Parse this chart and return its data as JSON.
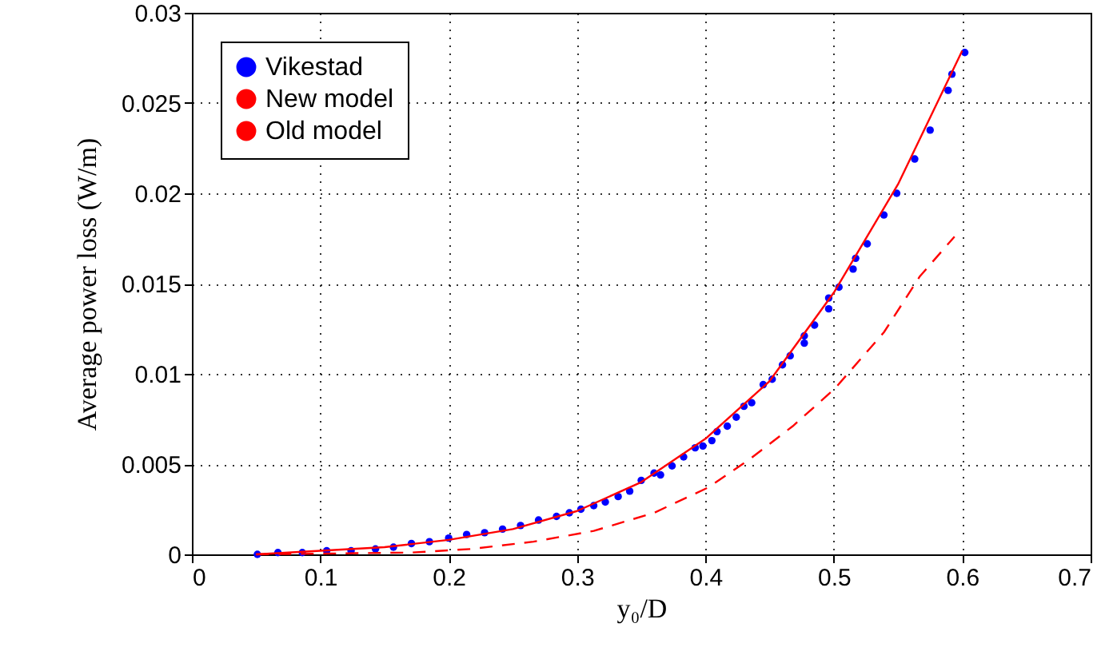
{
  "chart_data": {
    "type": "scatter",
    "xlabel": "y₀/D",
    "ylabel": "Average power loss (W/m)",
    "xlim": [
      0,
      0.7
    ],
    "ylim": [
      0,
      0.03
    ],
    "xticks": [
      0,
      0.1,
      0.2,
      0.3,
      0.4,
      0.5,
      0.6,
      0.7
    ],
    "yticks": [
      0,
      0.005,
      0.01,
      0.015,
      0.02,
      0.025,
      0.03
    ],
    "grid": true,
    "legend": "top left",
    "series": [
      {
        "name": "Vikestad",
        "marker": "circle",
        "color": "#0000ff",
        "x": [
          0.602,
          0.592,
          0.589,
          0.575,
          0.563,
          0.549,
          0.539,
          0.526,
          0.517,
          0.515,
          0.504,
          0.496,
          0.496,
          0.485,
          0.477,
          0.477,
          0.466,
          0.46,
          0.452,
          0.445,
          0.436,
          0.43,
          0.424,
          0.417,
          0.409,
          0.405,
          0.398,
          0.392,
          0.383,
          0.374,
          0.365,
          0.36,
          0.35,
          0.341,
          0.332,
          0.322,
          0.313,
          0.303,
          0.294,
          0.284,
          0.27,
          0.256,
          0.242,
          0.228,
          0.214,
          0.2,
          0.185,
          0.171,
          0.157,
          0.143,
          0.124,
          0.105,
          0.086,
          0.067,
          0.051
        ],
        "values": [
          0.0278,
          0.0266,
          0.0257,
          0.0235,
          0.0219,
          0.02,
          0.0188,
          0.0172,
          0.0164,
          0.0158,
          0.0148,
          0.0142,
          0.0136,
          0.0127,
          0.0121,
          0.0117,
          0.011,
          0.0105,
          0.0097,
          0.0094,
          0.0084,
          0.0082,
          0.0076,
          0.0071,
          0.0068,
          0.0063,
          0.006,
          0.0059,
          0.0054,
          0.0049,
          0.0044,
          0.0045,
          0.0041,
          0.0035,
          0.0032,
          0.0029,
          0.0027,
          0.0025,
          0.0023,
          0.0021,
          0.0019,
          0.0016,
          0.0014,
          0.0012,
          0.0011,
          0.0009,
          0.0007,
          0.0006,
          0.0004,
          0.0003,
          0.0002,
          0.0002,
          0.0001,
          0.0001,
          0
        ]
      },
      {
        "name": "New model",
        "type": "line",
        "line_style": "solid",
        "color": "#ff0000",
        "x": [
          0.05,
          0.1,
          0.15,
          0.2,
          0.25,
          0.3,
          0.35,
          0.4,
          0.45,
          0.5,
          0.55,
          0.6
        ],
        "values": [
          0,
          0.0002,
          0.0004,
          0.0008,
          0.0014,
          0.0024,
          0.004,
          0.0064,
          0.0096,
          0.0145,
          0.0205,
          0.0279
        ]
      },
      {
        "name": "Old model",
        "type": "line",
        "line_style": "dashed",
        "color": "#ff0000",
        "x": [
          0.05,
          0.171,
          0.218,
          0.266,
          0.313,
          0.36,
          0.402,
          0.435,
          0.468,
          0.501,
          0.539,
          0.567,
          0.594
        ],
        "values": [
          0,
          0.0001,
          0.0003,
          0.0007,
          0.0013,
          0.0023,
          0.0037,
          0.0053,
          0.0071,
          0.0092,
          0.0123,
          0.0154,
          0.0176
        ]
      }
    ]
  }
}
